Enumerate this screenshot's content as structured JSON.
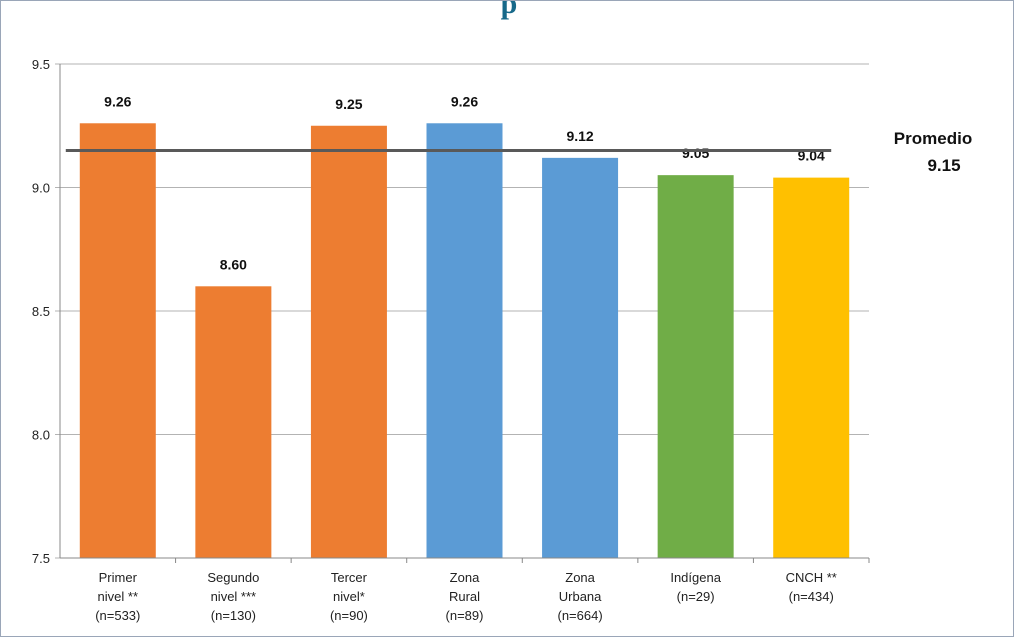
{
  "page_title_fragment": "p",
  "chart_data": {
    "type": "bar",
    "title": "",
    "xlabel": "",
    "ylabel": "",
    "ylim": [
      7.5,
      9.5
    ],
    "yticks": [
      "7.5",
      "8.0",
      "8.5",
      "9.0",
      "9.5"
    ],
    "grid": true,
    "categories": [
      [
        "Primer",
        "nivel **",
        "(n=533)"
      ],
      [
        "Segundo",
        "nivel ***",
        "(n=130)"
      ],
      [
        "Tercer",
        "nivel*",
        "(n=90)"
      ],
      [
        "Zona",
        "Rural",
        "(n=89)"
      ],
      [
        "Zona",
        "Urbana",
        "(n=664)"
      ],
      [
        "Indígena",
        "(n=29)"
      ],
      [
        "CNCH **",
        "(n=434)"
      ]
    ],
    "values": [
      9.26,
      8.6,
      9.25,
      9.26,
      9.12,
      9.05,
      9.04
    ],
    "data_labels": [
      "9.26",
      "8.60",
      "9.25",
      "9.26",
      "9.12",
      "9.05",
      "9.04"
    ],
    "colors": [
      "#ed7d31",
      "#ed7d31",
      "#ed7d31",
      "#5b9bd5",
      "#5b9bd5",
      "#70ad47",
      "#ffc000"
    ],
    "average": {
      "label": "Promedio",
      "value": 9.15,
      "value_label": "9.15",
      "color": "#595959"
    }
  }
}
